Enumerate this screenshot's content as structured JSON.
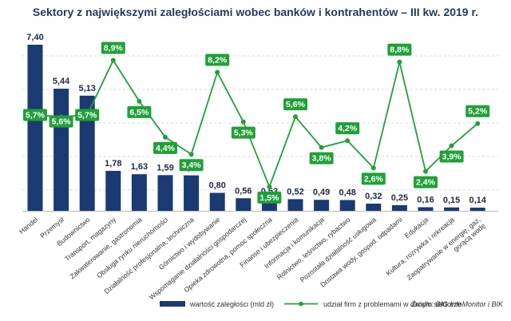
{
  "title": "Sektory z największymi zaległościami wobec banków i kontrahentów – III kw. 2019 r.",
  "source": "Źródło: BIG InfoMonitor i BIK",
  "colors": {
    "bar": "#1b3a73",
    "line": "#21a038",
    "grid": "#c9ced6",
    "title": "#1f3a5f"
  },
  "legend": {
    "bar_label": "wartość zaległości (mld zł)",
    "line_label": "udział firm z problemami w danym sektorze"
  },
  "chart_data": {
    "type": "bar+line",
    "title": "Sektory z największymi zaległościami wobec banków i kontrahentów – III kw. 2019 r.",
    "categories": [
      "Handel",
      "Przemysł",
      "Budownictwo",
      "Transport, magazyny",
      "Zakwaterowanie, gastronomia",
      "Obsługa rynku nieruchomości",
      "Działalność profesjonalna, techniczna",
      "Górnictwo i wydobywanie",
      "Wspomaganie działalności gospodarczej",
      "Opieka zdrowotna, pomoc społeczna",
      "Finanse i ubezpieczenia",
      "Informacja i komunikacja",
      "Rolnictwo, leśnictwo, rybactwo",
      "Pozostała działalność usługowa",
      "Dostawa wody, gospod. odpadami",
      "Edukacja",
      "Kultura, rozrywka i rekreacja",
      "Zaopatrywanie w energię, gaz, gorącą wodę"
    ],
    "series": [
      {
        "name": "wartość zaległości (mld zł)",
        "type": "bar",
        "values": [
          7.4,
          5.44,
          5.13,
          1.78,
          1.63,
          1.59,
          1.58,
          0.8,
          0.56,
          0.53,
          0.52,
          0.49,
          0.48,
          0.32,
          0.25,
          0.16,
          0.15,
          0.14
        ],
        "labels": [
          "7,40",
          "5,44",
          "5,13",
          "1,78",
          "1,63",
          "1,59",
          "1,58",
          "0,80",
          "0,56",
          "0,53",
          "0,52",
          "0,49",
          "0,48",
          "0,32",
          "0,25",
          "0,16",
          "0,15",
          "0,14"
        ]
      },
      {
        "name": "udział firm z problemami w danym sektorze",
        "type": "line",
        "values": [
          5.7,
          5.6,
          5.7,
          8.9,
          6.5,
          4.4,
          3.4,
          8.2,
          5.3,
          1.5,
          5.6,
          3.8,
          4.2,
          2.6,
          8.8,
          2.4,
          3.9,
          5.2
        ],
        "labels": [
          "5,7%",
          "5,6%",
          "5,7%",
          "8,9%",
          "6,5%",
          "4,4%",
          "3,4%",
          "8,2%",
          "5,3%",
          "1,5%",
          "5,6%",
          "3,8%",
          "4,2%",
          "2,6%",
          "8,8%",
          "2,4%",
          "3,9%",
          "5,2%"
        ]
      }
    ],
    "bar_axis": {
      "min": 0,
      "max": 7.4
    },
    "line_axis": {
      "min": 0,
      "max": 10
    },
    "grid": true
  }
}
